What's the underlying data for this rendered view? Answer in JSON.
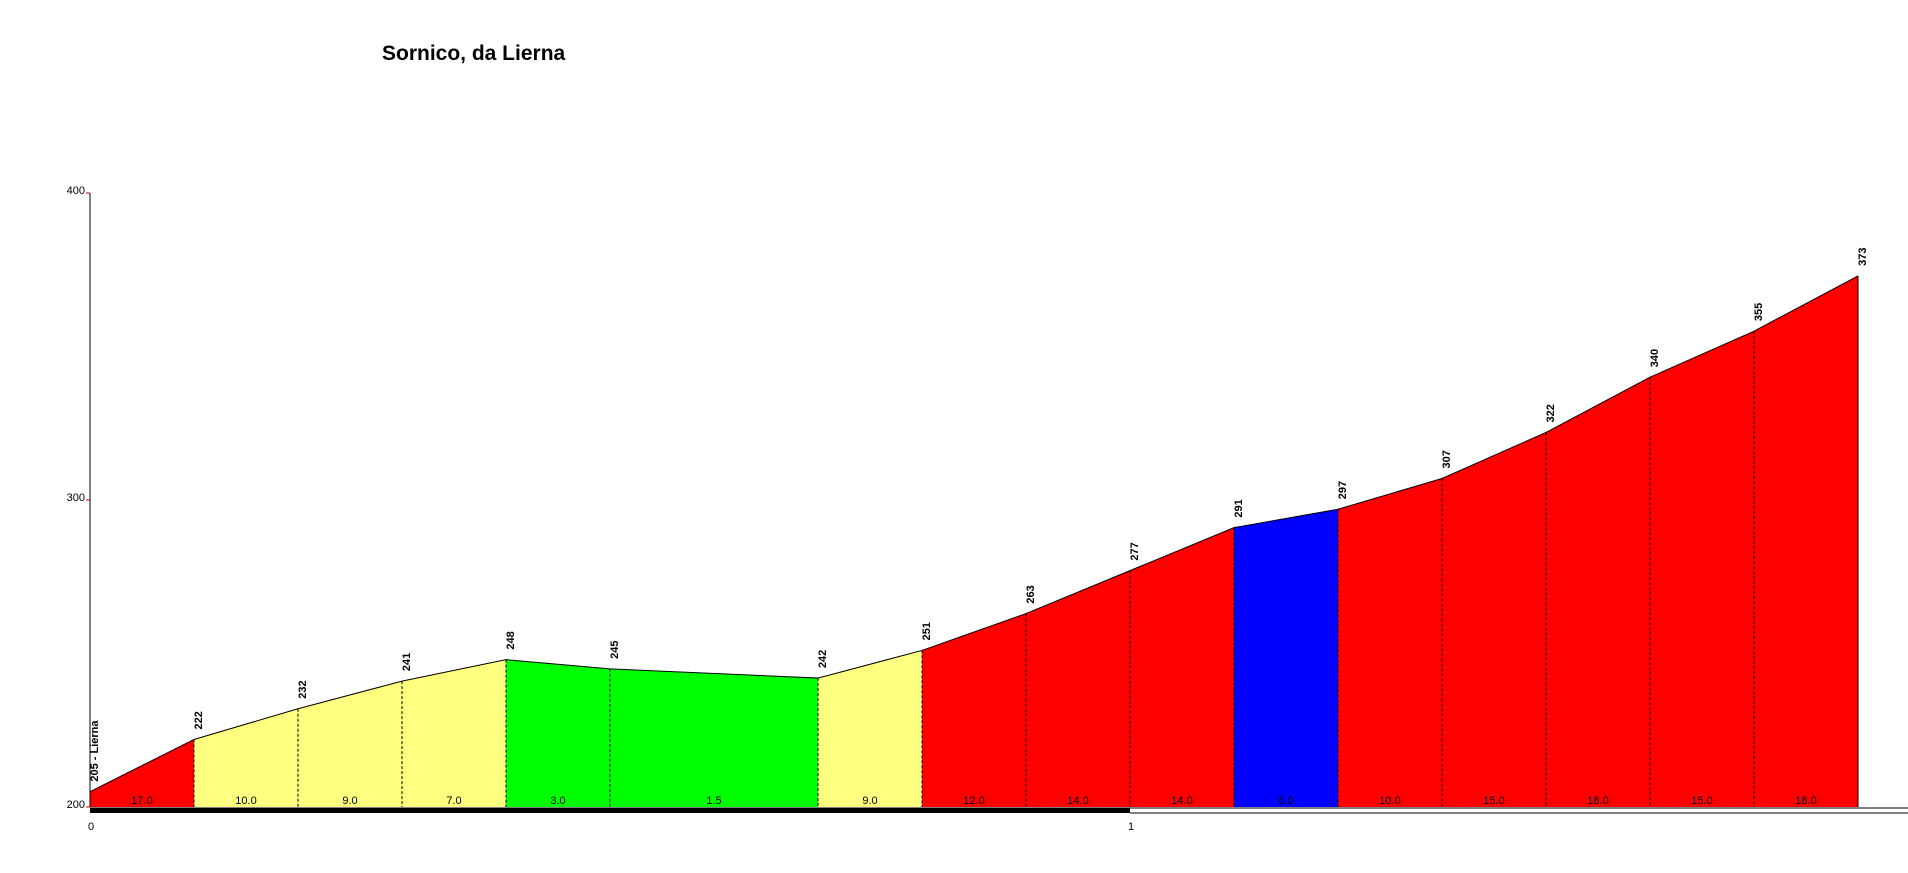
{
  "chart_data": {
    "type": "area",
    "title": "Sornico, da Lierna",
    "xlabel": "",
    "ylabel": "",
    "xlim": [
      0,
      1.8
    ],
    "ylim": [
      200,
      400
    ],
    "y_ticks": [
      "200",
      "300",
      "400"
    ],
    "x_ticks": [
      {
        "value": 0,
        "label": "0"
      },
      {
        "value": 1,
        "label": "1"
      }
    ],
    "points": [
      {
        "x": 0.0,
        "elevation": 205,
        "label": "205 - Lierna"
      },
      {
        "x": 0.1,
        "elevation": 222,
        "label": "222"
      },
      {
        "x": 0.2,
        "elevation": 232,
        "label": "232"
      },
      {
        "x": 0.3,
        "elevation": 241,
        "label": "241"
      },
      {
        "x": 0.4,
        "elevation": 248,
        "label": "248"
      },
      {
        "x": 0.5,
        "elevation": 245,
        "label": "245"
      },
      {
        "x": 0.7,
        "elevation": 242,
        "label": "242"
      },
      {
        "x": 0.8,
        "elevation": 251,
        "label": "251"
      },
      {
        "x": 0.9,
        "elevation": 263,
        "label": "263"
      },
      {
        "x": 1.0,
        "elevation": 277,
        "label": "277"
      },
      {
        "x": 1.1,
        "elevation": 291,
        "label": "291"
      },
      {
        "x": 1.2,
        "elevation": 297,
        "label": "297"
      },
      {
        "x": 1.3,
        "elevation": 307,
        "label": "307"
      },
      {
        "x": 1.4,
        "elevation": 322,
        "label": "322"
      },
      {
        "x": 1.5,
        "elevation": 340,
        "label": "340"
      },
      {
        "x": 1.6,
        "elevation": 355,
        "label": "355"
      },
      {
        "x": 1.7,
        "elevation": 373,
        "label": "373"
      }
    ],
    "segments": [
      {
        "from": 0.0,
        "to": 0.1,
        "gradient": "17.0",
        "color": "#ff0000"
      },
      {
        "from": 0.1,
        "to": 0.2,
        "gradient": "10.0",
        "color": "#ffff80"
      },
      {
        "from": 0.2,
        "to": 0.3,
        "gradient": "9.0",
        "color": "#ffff80"
      },
      {
        "from": 0.3,
        "to": 0.4,
        "gradient": "7.0",
        "color": "#ffff80"
      },
      {
        "from": 0.4,
        "to": 0.5,
        "gradient": "3.0",
        "color": "#00ff00"
      },
      {
        "from": 0.5,
        "to": 0.7,
        "gradient": "1.5",
        "color": "#00ff00"
      },
      {
        "from": 0.7,
        "to": 0.8,
        "gradient": "9.0",
        "color": "#ffff80"
      },
      {
        "from": 0.8,
        "to": 0.9,
        "gradient": "12.0",
        "color": "#ff0000"
      },
      {
        "from": 0.9,
        "to": 1.0,
        "gradient": "14.0",
        "color": "#ff0000"
      },
      {
        "from": 1.0,
        "to": 1.1,
        "gradient": "14.0",
        "color": "#ff0000"
      },
      {
        "from": 1.1,
        "to": 1.2,
        "gradient": "6.0",
        "color": "#0000ff"
      },
      {
        "from": 1.2,
        "to": 1.3,
        "gradient": "10.0",
        "color": "#ff0000"
      },
      {
        "from": 1.3,
        "to": 1.4,
        "gradient": "15.0",
        "color": "#ff0000"
      },
      {
        "from": 1.4,
        "to": 1.5,
        "gradient": "18.0",
        "color": "#ff0000"
      },
      {
        "from": 1.5,
        "to": 1.6,
        "gradient": "15.0",
        "color": "#ff0000"
      },
      {
        "from": 1.6,
        "to": 1.7,
        "gradient": "18.0",
        "color": "#ff0000"
      }
    ],
    "colors": {
      "axis": "#000000",
      "tick_mark": "#c00000",
      "km_bar": "#000000"
    },
    "legend": "none",
    "grid": false
  }
}
